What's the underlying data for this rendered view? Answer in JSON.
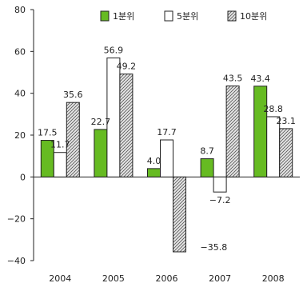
{
  "chart_data": {
    "type": "bar",
    "title": "",
    "xlabel": "",
    "ylabel": "",
    "categories": [
      "2004",
      "2005",
      "2006",
      "2007",
      "2008"
    ],
    "ylim": [
      -40,
      80
    ],
    "yticks": [
      "80",
      "60",
      "40",
      "20",
      "0",
      "−20",
      "−40"
    ],
    "legend_position": "top",
    "grid": false,
    "series": [
      {
        "name": "1분위",
        "values": [
          17.5,
          22.7,
          4.0,
          8.7,
          43.4
        ],
        "labels": [
          "17.5",
          "22.7",
          "4.0",
          "8.7",
          "43.4"
        ],
        "fill": "#66bb22",
        "pattern": "solid"
      },
      {
        "name": "5분위",
        "values": [
          11.7,
          56.9,
          17.7,
          -7.2,
          28.8
        ],
        "labels": [
          "11.7",
          "56.9",
          "17.7",
          "−7.2",
          "28.8"
        ],
        "fill": "#ffffff",
        "pattern": "solid"
      },
      {
        "name": "10분위",
        "values": [
          35.6,
          49.2,
          -35.8,
          43.5,
          23.1
        ],
        "labels": [
          "35.6",
          "49.2",
          "−35.8",
          "43.5",
          "23.1"
        ],
        "fill": "#cccccc",
        "pattern": "hatch"
      }
    ]
  }
}
